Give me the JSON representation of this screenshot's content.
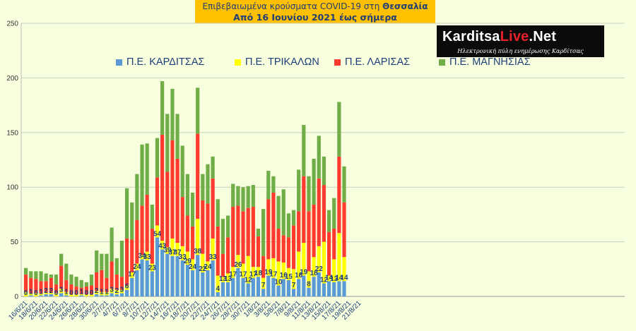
{
  "title": {
    "line1_pre": "Επιβεβαιωμένα κρούσματα COVID-19 στη",
    "line1_region": "Θεσσαλία",
    "line2": "Από 16 Ιουνίου 2021 έως σήμερα"
  },
  "logo": {
    "main_white_1": "Karditsa",
    "main_red": "Live",
    "main_white_2": ".Net",
    "subtitle": "Ηλεκτρονική πύλη ενημέρωσης Καρδίτσας"
  },
  "colors": {
    "background": "#f7ffdf",
    "karditsa": "#5b9bd5",
    "trikala": "#ffff00",
    "larisa": "#ff3b30",
    "magnisia": "#70ad47",
    "title_bg": "#ffc000",
    "text": "#1f3e78"
  },
  "chart_data": {
    "type": "bar",
    "stacked": true,
    "ylim": [
      0,
      250
    ],
    "yticks": [
      0,
      50,
      100,
      150,
      200,
      250
    ],
    "grid": "horizontal",
    "legend_position": "top",
    "x_tick_labels": [
      "16/6/21",
      "18/6/21",
      "20/6/21",
      "22/6/21",
      "24/6/21",
      "26/6/21",
      "28/6/21",
      "30/6/21",
      "2/7/21",
      "4/7/21",
      "6/7/21",
      "8/7/21",
      "10/7/21",
      "12/7/21",
      "14/7/21",
      "16/7/21",
      "18/7/21",
      "20/7/21",
      "22/7/21",
      "24/7/21",
      "26/7/21",
      "28/7/21",
      "30/7/21",
      "1/8/21",
      "3/8/21",
      "5/8/21",
      "7/8/21",
      "9/8/21",
      "11/8/21",
      "13/8/21",
      "15/8/21",
      "17/8/21",
      "19/8/21",
      "21/8/21"
    ],
    "categories": [
      "16/6",
      "17/6",
      "18/6",
      "19/6",
      "20/6",
      "21/6",
      "22/6",
      "23/6",
      "24/6",
      "25/6",
      "26/6",
      "27/6",
      "28/6",
      "29/6",
      "30/6",
      "1/7",
      "2/7",
      "3/7",
      "4/7",
      "5/7",
      "6/7",
      "7/7",
      "8/7",
      "9/7",
      "10/7",
      "11/7",
      "12/7",
      "13/7",
      "14/7",
      "15/7",
      "16/7",
      "17/7",
      "18/7",
      "19/7",
      "20/7",
      "21/7",
      "22/7",
      "23/7",
      "24/7",
      "25/7",
      "26/7",
      "27/7",
      "28/7",
      "29/7",
      "30/7",
      "31/7",
      "1/8",
      "2/8",
      "3/8",
      "4/8",
      "5/8",
      "6/8",
      "7/8",
      "8/8",
      "9/8",
      "10/8",
      "11/8",
      "12/8",
      "13/8",
      "14/8",
      "15/8",
      "16/8",
      "17/8",
      "18/8"
    ],
    "series": [
      {
        "name": "Π.Ε. ΚΑΡΔΙΤΣΑΣ",
        "values": [
          0,
          1,
          0,
          1,
          2,
          2,
          0,
          3,
          1,
          0,
          0,
          1,
          0,
          0,
          2,
          1,
          1,
          3,
          2,
          3,
          6,
          17,
          24,
          34,
          33,
          23,
          54,
          43,
          39,
          37,
          37,
          33,
          29,
          24,
          38,
          22,
          24,
          33,
          4,
          13,
          13,
          17,
          26,
          17,
          12,
          17,
          18,
          7,
          19,
          17,
          10,
          16,
          15,
          7,
          16,
          19,
          8,
          18,
          22,
          12,
          14,
          13,
          14,
          14
        ]
      },
      {
        "name": "Π.Ε. ΤΡΙΚΑΛΩΝ",
        "values": [
          4,
          2,
          3,
          2,
          2,
          2,
          3,
          4,
          3,
          2,
          2,
          1,
          2,
          2,
          3,
          3,
          3,
          4,
          4,
          3,
          4,
          5,
          6,
          4,
          8,
          7,
          11,
          8,
          6,
          16,
          12,
          13,
          12,
          10,
          33,
          17,
          8,
          20,
          15,
          5,
          8,
          10,
          12,
          13,
          25,
          10,
          9,
          10,
          15,
          18,
          22,
          15,
          11,
          18,
          25,
          30,
          15,
          18,
          24,
          38,
          5,
          21,
          44,
          22
        ]
      },
      {
        "name": "Π.Ε. ΛΑΡΙΣΑΣ",
        "values": [
          16,
          14,
          13,
          11,
          10,
          13,
          8,
          21,
          11,
          9,
          7,
          6,
          7,
          8,
          17,
          20,
          13,
          25,
          14,
          12,
          43,
          30,
          40,
          45,
          52,
          32,
          44,
          97,
          69,
          90,
          77,
          45,
          33,
          30,
          78,
          49,
          53,
          55,
          45,
          21,
          33,
          55,
          45,
          48,
          44,
          55,
          28,
          20,
          55,
          60,
          30,
          25,
          28,
          40,
          37,
          61,
          55,
          48,
          62,
          52,
          40,
          28,
          70,
          50
        ]
      },
      {
        "name": "Π.Ε. ΜΑΓΝΗΣΙΑΣ",
        "values": [
          6,
          6,
          7,
          9,
          7,
          3,
          9,
          11,
          15,
          9,
          9,
          7,
          4,
          10,
          20,
          15,
          22,
          31,
          15,
          33,
          46,
          34,
          42,
          56,
          47,
          22,
          36,
          49,
          53,
          47,
          41,
          47,
          38,
          31,
          42,
          24,
          36,
          20,
          25,
          32,
          20,
          21,
          18,
          22,
          20,
          20,
          7,
          43,
          26,
          15,
          30,
          42,
          22,
          14,
          38,
          47,
          32,
          42,
          39,
          26,
          20,
          28,
          50,
          33
        ]
      }
    ],
    "data_labels": [
      "0",
      "1",
      "0",
      "1",
      "2",
      "2",
      "0",
      "3",
      "1",
      "0",
      "0",
      "1",
      "0",
      "0",
      "2",
      "1",
      "1",
      "3",
      "2",
      "3",
      "6",
      "17",
      "24",
      "34",
      "33",
      "23",
      "54",
      "43",
      "39",
      "37",
      "37",
      "33",
      "29",
      "24",
      "38",
      "22",
      "24",
      "33",
      "4",
      "13",
      "13",
      "17",
      "26",
      "17",
      "12",
      "17",
      "18",
      "7",
      "19",
      "17",
      "10",
      "16",
      "15",
      "7",
      "16",
      "19",
      "8",
      "18",
      "22",
      "12",
      "14",
      "13",
      "14",
      "14"
    ]
  }
}
